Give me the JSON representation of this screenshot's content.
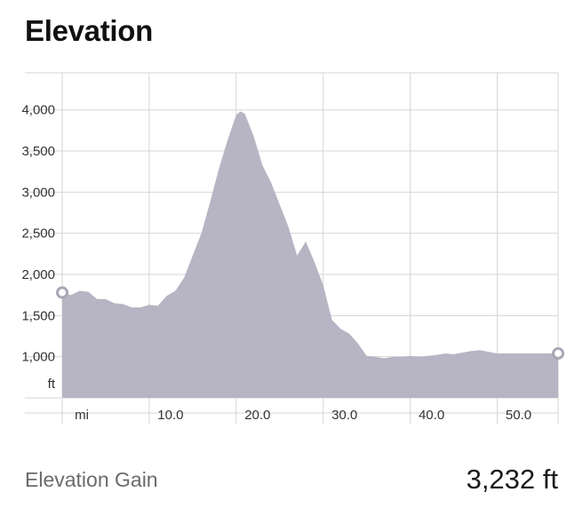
{
  "title": "Elevation",
  "colors": {
    "fill": "#b7b5c4",
    "grid": "#d6d6d6",
    "axis_text": "#333333",
    "marker": "#ffffff",
    "marker_stroke": "#a9a7b5"
  },
  "chart_data": {
    "type": "area",
    "xlabel": "mi",
    "ylabel": "ft",
    "xlim": [
      0,
      57
    ],
    "ylim": [
      500,
      4450
    ],
    "x_ticks": [
      10,
      20,
      30,
      40,
      50
    ],
    "x_tick_labels": [
      "10.0",
      "20.0",
      "30.0",
      "40.0",
      "50.0"
    ],
    "y_ticks": [
      1000,
      1500,
      2000,
      2500,
      3000,
      3500,
      4000
    ],
    "y_tick_labels": [
      "1,000",
      "1,500",
      "2,000",
      "2,500",
      "3,000",
      "3,500",
      "4,000"
    ],
    "grid": true,
    "series": [
      {
        "x": [
          0,
          1,
          2,
          3,
          4,
          5,
          6,
          7,
          8,
          9,
          10,
          11,
          12,
          13,
          14,
          15,
          16,
          17,
          18,
          19,
          20,
          20.5,
          21,
          22,
          23,
          24,
          25,
          26,
          27,
          28,
          29,
          30,
          31,
          32,
          33,
          34,
          35,
          36,
          37,
          38,
          39,
          40,
          41,
          42,
          43,
          44,
          45,
          46,
          47,
          48,
          49,
          50,
          51,
          52,
          53,
          54,
          55,
          56,
          57
        ],
        "y": [
          1780,
          1750,
          1800,
          1790,
          1700,
          1700,
          1650,
          1640,
          1600,
          1600,
          1630,
          1620,
          1740,
          1800,
          1960,
          2230,
          2500,
          2880,
          3280,
          3630,
          3940,
          3980,
          3950,
          3680,
          3330,
          3120,
          2850,
          2580,
          2230,
          2400,
          2150,
          1870,
          1450,
          1340,
          1280,
          1160,
          1010,
          1000,
          980,
          1000,
          1000,
          1010,
          1000,
          1010,
          1020,
          1040,
          1030,
          1050,
          1070,
          1080,
          1060,
          1040,
          1040,
          1040,
          1040,
          1040,
          1040,
          1040,
          1040
        ]
      }
    ],
    "markers": "start-end"
  },
  "gain": {
    "label": "Elevation Gain",
    "value": "3,232 ft"
  }
}
